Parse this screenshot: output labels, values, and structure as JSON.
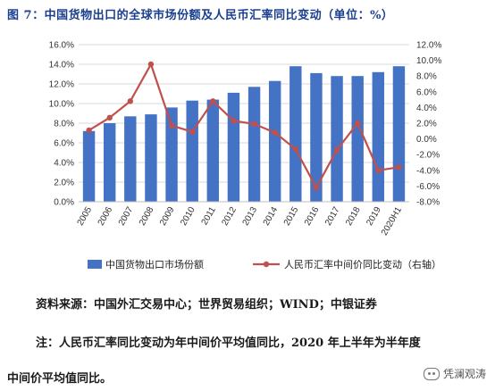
{
  "title": "图 7：中国货物出口的全球市场份额及人民币汇率同比变动（单位：%）",
  "source": "资料来源：中国外汇交易中心；世界贸易组织；WIND；中银证券",
  "note_line1": "注：人民币汇率同比变动为年中间价平均值同比，2020 年上半年为半年度",
  "note_line2": "中间价平均值同比。",
  "watermark": "凭澜观涛",
  "chart_data": {
    "type": "bar",
    "categories": [
      "2005",
      "2006",
      "2007",
      "2008",
      "2009",
      "2010",
      "2011",
      "2012",
      "2013",
      "2014",
      "2015",
      "2016",
      "2017",
      "2018",
      "2019",
      "2020H1"
    ],
    "series": [
      {
        "name": "中国货物出口市场份额",
        "kind": "bar",
        "axis": "left",
        "color": "#4472c4",
        "values": [
          7.2,
          8.0,
          8.7,
          8.9,
          9.6,
          10.3,
          10.4,
          11.1,
          11.7,
          12.3,
          13.8,
          13.1,
          12.8,
          12.8,
          13.2,
          13.8
        ]
      },
      {
        "name": "人民币汇率中间价同比变动（右轴）",
        "kind": "line",
        "axis": "right",
        "color": "#c0504d",
        "values": [
          1.1,
          2.7,
          4.8,
          9.5,
          1.7,
          0.9,
          4.8,
          2.3,
          1.9,
          0.8,
          -1.3,
          -6.2,
          -1.4,
          2.0,
          -4.0,
          -3.6
        ]
      }
    ],
    "y_left": {
      "min": 0,
      "max": 16,
      "step": 2,
      "ticks": [
        "0.0%",
        "2.0%",
        "4.0%",
        "6.0%",
        "8.0%",
        "10.0%",
        "12.0%",
        "14.0%",
        "16.0%"
      ]
    },
    "y_right": {
      "min": -8,
      "max": 12,
      "step": 2,
      "ticks": [
        "-8.0%",
        "-6.0%",
        "-4.0%",
        "-2.0%",
        "0.0%",
        "2.0%",
        "4.0%",
        "6.0%",
        "8.0%",
        "10.0%",
        "12.0%"
      ]
    },
    "grid": true,
    "legend_position": "bottom"
  }
}
